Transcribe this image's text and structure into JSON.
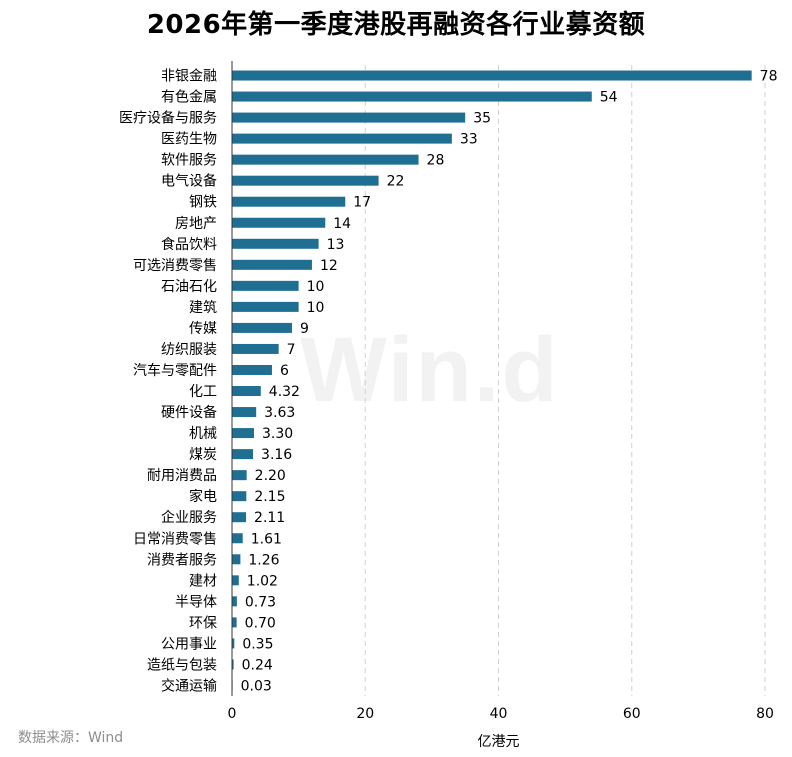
{
  "source_note": "数据来源：Wind",
  "watermark": "Win.d",
  "chart_data": {
    "type": "bar",
    "orientation": "horizontal",
    "title": "2026年第一季度港股再融资各行业募资额",
    "xlabel": "亿港元",
    "ylabel": "",
    "xlim": [
      0,
      80
    ],
    "xticks": [
      0,
      20,
      40,
      60,
      80
    ],
    "grid": "vertical-dashed",
    "bar_color": "#1f6f93",
    "categories": [
      "非银金融",
      "有色金属",
      "医疗设备与服务",
      "医药生物",
      "软件服务",
      "电气设备",
      "钢铁",
      "房地产",
      "食品饮料",
      "可选消费零售",
      "石油石化",
      "建筑",
      "传媒",
      "纺织服装",
      "汽车与零配件",
      "化工",
      "硬件设备",
      "机械",
      "煤炭",
      "耐用消费品",
      "家电",
      "企业服务",
      "日常消费零售",
      "消费者服务",
      "建材",
      "半导体",
      "环保",
      "公用事业",
      "造纸与包装",
      "交通运输"
    ],
    "values": [
      78,
      54,
      35,
      33,
      28,
      22,
      17,
      14,
      13,
      12,
      10,
      10,
      9,
      7,
      6,
      4.32,
      3.63,
      3.3,
      3.16,
      2.2,
      2.15,
      2.11,
      1.61,
      1.26,
      1.02,
      0.73,
      0.7,
      0.35,
      0.24,
      0.03
    ],
    "value_labels": [
      "78",
      "54",
      "35",
      "33",
      "28",
      "22",
      "17",
      "14",
      "13",
      "12",
      "10",
      "10",
      "9",
      "7",
      "6",
      "4.32",
      "3.63",
      "3.30",
      "3.16",
      "2.20",
      "2.15",
      "2.11",
      "1.61",
      "1.26",
      "1.02",
      "0.73",
      "0.70",
      "0.35",
      "0.24",
      "0.03"
    ]
  }
}
